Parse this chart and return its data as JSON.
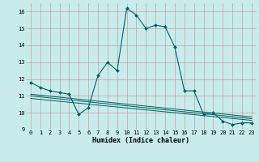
{
  "xlabel": "Humidex (Indice chaleur)",
  "bg_color": "#c8ecec",
  "grid_color": "#c09090",
  "line_color": "#006060",
  "xlim": [
    -0.5,
    23.5
  ],
  "ylim": [
    9,
    16.5
  ],
  "yticks": [
    9,
    10,
    11,
    12,
    13,
    14,
    15,
    16
  ],
  "xticks": [
    0,
    1,
    2,
    3,
    4,
    5,
    6,
    7,
    8,
    9,
    10,
    11,
    12,
    13,
    14,
    15,
    16,
    17,
    18,
    19,
    20,
    21,
    22,
    23
  ],
  "series1_x": [
    0,
    1,
    2,
    3,
    4,
    5,
    6,
    7,
    8,
    9,
    10,
    11,
    12,
    13,
    14,
    15,
    16,
    17,
    18,
    19,
    20,
    21,
    22,
    23
  ],
  "series1_y": [
    11.8,
    11.5,
    11.3,
    11.2,
    11.1,
    9.9,
    10.3,
    12.2,
    13.0,
    12.5,
    16.2,
    15.8,
    15.0,
    15.2,
    15.1,
    13.9,
    11.3,
    11.3,
    9.9,
    10.0,
    9.5,
    9.3,
    9.4,
    9.4
  ],
  "series2_x": [
    0,
    23
  ],
  "series2_y": [
    11.1,
    9.75
  ],
  "series3_x": [
    0,
    23
  ],
  "series3_y": [
    11.0,
    9.65
  ],
  "series4_x": [
    0,
    23
  ],
  "series4_y": [
    10.85,
    9.55
  ],
  "label_fontsize": 5.0,
  "tick_fontsize": 5.0,
  "xlabel_fontsize": 6.0
}
